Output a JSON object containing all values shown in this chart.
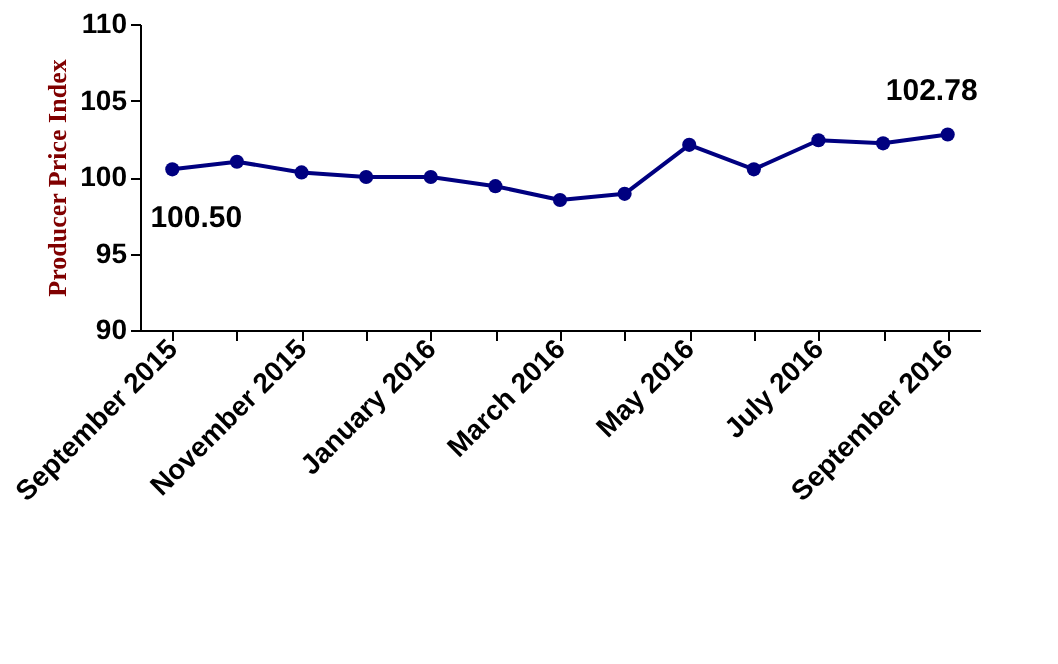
{
  "chart_data": {
    "type": "line",
    "ylabel": "Producer Price Index",
    "categories": [
      "September 2015",
      null,
      "November 2015",
      null,
      "January 2016",
      null,
      "March 2016",
      null,
      "May 2016",
      null,
      "July 2016",
      null,
      "September 2016"
    ],
    "series": [
      {
        "color": "#000080",
        "values": [
          100.5,
          101.0,
          100.3,
          100.0,
          100.0,
          99.4,
          98.5,
          98.9,
          102.1,
          100.5,
          102.4,
          102.2,
          102.78
        ],
        "value_labels": [
          "100.50",
          null,
          null,
          null,
          null,
          null,
          null,
          null,
          null,
          null,
          null,
          null,
          "102.78"
        ]
      }
    ],
    "ylim": [
      90,
      110
    ],
    "yticks": [
      90,
      95,
      100,
      105,
      110
    ],
    "grid": false,
    "legend": false,
    "marker": "circle",
    "line_style": "solid"
  }
}
